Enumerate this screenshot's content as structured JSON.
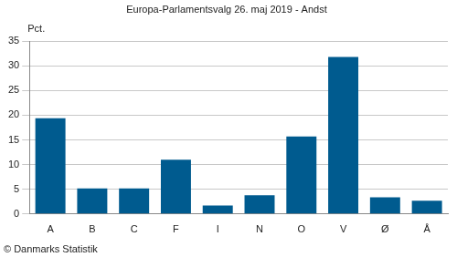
{
  "chart_data": {
    "type": "bar",
    "title": "Europa-Parlamentsvalg 26. maj 2019 - Andst",
    "ylabel": "Pct.",
    "annotations": [
      "© Danmarks Statistik"
    ],
    "categories": [
      "A",
      "B",
      "C",
      "F",
      "I",
      "N",
      "O",
      "V",
      "Ø",
      "Å"
    ],
    "values": [
      19.4,
      5.2,
      5.2,
      11.0,
      1.7,
      3.8,
      15.7,
      31.8,
      3.4,
      2.7
    ],
    "color": "#005b8f",
    "ylim": [
      0,
      35
    ],
    "yticks": [
      0,
      5,
      10,
      15,
      20,
      25,
      30,
      35
    ],
    "grid": true
  }
}
